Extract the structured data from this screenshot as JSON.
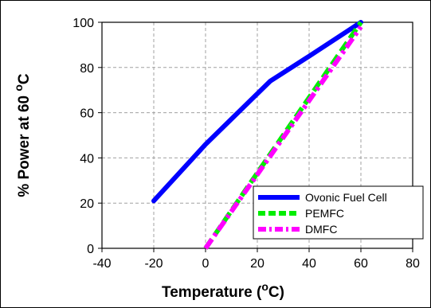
{
  "chart_data": {
    "type": "line",
    "xlabel": {
      "main": "Temperature (",
      "sup": "o",
      "unit": "C)"
    },
    "ylabel": {
      "main": "% Power at 60 ",
      "sup": "o",
      "unit": "C"
    },
    "xlim": [
      -40,
      80
    ],
    "ylim": [
      0,
      100
    ],
    "xticks": [
      -40,
      -20,
      0,
      20,
      40,
      60,
      80
    ],
    "yticks": [
      0,
      20,
      40,
      60,
      80,
      100
    ],
    "grid": true,
    "legend_position": "bottom-right",
    "series": [
      {
        "name": "Ovonic Fuel Cell",
        "color": "#0000ff",
        "dash": "solid",
        "x": [
          -20,
          0,
          25,
          40,
          60
        ],
        "y": [
          21,
          46,
          74,
          85,
          100
        ]
      },
      {
        "name": "PEMFC",
        "color": "#00ee00",
        "dash": "dash",
        "x": [
          0,
          60
        ],
        "y": [
          0,
          100
        ]
      },
      {
        "name": "DMFC",
        "color": "#ff00ff",
        "dash": "dashdot",
        "x": [
          0,
          60
        ],
        "y": [
          0,
          98
        ]
      }
    ]
  }
}
